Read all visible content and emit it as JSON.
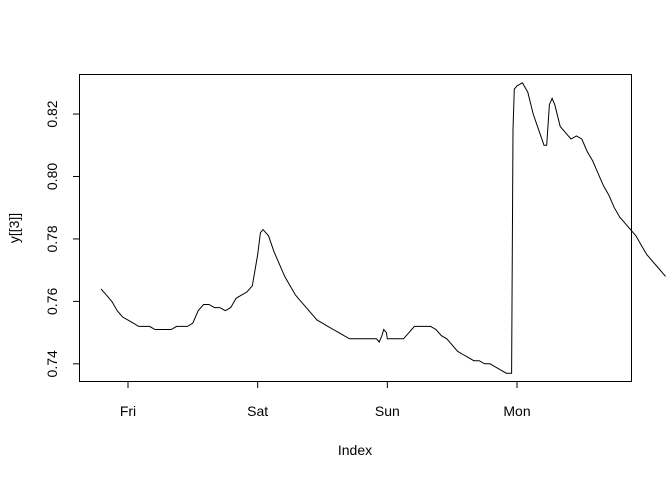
{
  "chart_data": {
    "type": "line",
    "title": "",
    "xlabel": "Index",
    "ylabel": "y[[3]]",
    "x_ticks": [
      "Fri",
      "Sat",
      "Sun",
      "Mon"
    ],
    "y_ticks": [
      "0.74",
      "0.76",
      "0.78",
      "0.80",
      "0.82"
    ],
    "ylim": [
      0.7345,
      0.8325
    ],
    "grid": false,
    "legend": "none",
    "line_color": "#000000",
    "series": [
      {
        "points": [
          [
            "Thu 19:00",
            0.764
          ],
          [
            "Thu 20:00",
            0.762
          ],
          [
            "Thu 21:00",
            0.76
          ],
          [
            "Thu 22:00",
            0.757
          ],
          [
            "Thu 23:00",
            0.755
          ],
          [
            "Fri 00:00",
            0.754
          ],
          [
            "Fri 01:00",
            0.753
          ],
          [
            "Fri 02:00",
            0.752
          ],
          [
            "Fri 03:00",
            0.752
          ],
          [
            "Fri 04:00",
            0.752
          ],
          [
            "Fri 05:00",
            0.751
          ],
          [
            "Fri 06:00",
            0.751
          ],
          [
            "Fri 07:00",
            0.751
          ],
          [
            "Fri 08:00",
            0.751
          ],
          [
            "Fri 09:00",
            0.752
          ],
          [
            "Fri 10:00",
            0.752
          ],
          [
            "Fri 11:00",
            0.752
          ],
          [
            "Fri 12:00",
            0.753
          ],
          [
            "Fri 13:00",
            0.757
          ],
          [
            "Fri 14:00",
            0.759
          ],
          [
            "Fri 15:00",
            0.759
          ],
          [
            "Fri 16:00",
            0.758
          ],
          [
            "Fri 17:00",
            0.758
          ],
          [
            "Fri 18:00",
            0.757
          ],
          [
            "Fri 19:00",
            0.758
          ],
          [
            "Fri 20:00",
            0.761
          ],
          [
            "Fri 21:00",
            0.762
          ],
          [
            "Fri 22:00",
            0.763
          ],
          [
            "Fri 23:00",
            0.765
          ],
          [
            "Sat 00:00",
            0.775
          ],
          [
            "Sat 00:30",
            0.782
          ],
          [
            "Sat 01:00",
            0.783
          ],
          [
            "Sat 02:00",
            0.781
          ],
          [
            "Sat 03:00",
            0.776
          ],
          [
            "Sat 04:00",
            0.772
          ],
          [
            "Sat 05:00",
            0.768
          ],
          [
            "Sat 06:00",
            0.765
          ],
          [
            "Sat 07:00",
            0.762
          ],
          [
            "Sat 08:00",
            0.76
          ],
          [
            "Sat 09:00",
            0.758
          ],
          [
            "Sat 10:00",
            0.756
          ],
          [
            "Sat 11:00",
            0.754
          ],
          [
            "Sat 12:00",
            0.753
          ],
          [
            "Sat 13:00",
            0.752
          ],
          [
            "Sat 14:00",
            0.751
          ],
          [
            "Sat 15:00",
            0.75
          ],
          [
            "Sat 16:00",
            0.749
          ],
          [
            "Sat 17:00",
            0.748
          ],
          [
            "Sat 18:00",
            0.748
          ],
          [
            "Sat 19:00",
            0.748
          ],
          [
            "Sat 20:00",
            0.748
          ],
          [
            "Sat 21:00",
            0.748
          ],
          [
            "Sat 22:00",
            0.748
          ],
          [
            "Sat 22:30",
            0.747
          ],
          [
            "Sat 23:00",
            0.749
          ],
          [
            "Sat 23:20",
            0.751
          ],
          [
            "Sat 23:50",
            0.75
          ],
          [
            "Sun 00:00",
            0.748
          ],
          [
            "Sun 01:00",
            0.748
          ],
          [
            "Sun 02:00",
            0.748
          ],
          [
            "Sun 03:00",
            0.748
          ],
          [
            "Sun 04:00",
            0.75
          ],
          [
            "Sun 05:00",
            0.752
          ],
          [
            "Sun 06:00",
            0.752
          ],
          [
            "Sun 07:00",
            0.752
          ],
          [
            "Sun 08:00",
            0.752
          ],
          [
            "Sun 09:00",
            0.751
          ],
          [
            "Sun 10:00",
            0.749
          ],
          [
            "Sun 11:00",
            0.748
          ],
          [
            "Sun 12:00",
            0.746
          ],
          [
            "Sun 13:00",
            0.744
          ],
          [
            "Sun 14:00",
            0.743
          ],
          [
            "Sun 15:00",
            0.742
          ],
          [
            "Sun 16:00",
            0.741
          ],
          [
            "Sun 17:00",
            0.741
          ],
          [
            "Sun 18:00",
            0.74
          ],
          [
            "Sun 19:00",
            0.74
          ],
          [
            "Sun 20:00",
            0.739
          ],
          [
            "Sun 21:00",
            0.738
          ],
          [
            "Sun 22:00",
            0.737
          ],
          [
            "Sun 23:00",
            0.737
          ],
          [
            "Sun 23:15",
            0.815
          ],
          [
            "Sun 23:30",
            0.828
          ],
          [
            "Mon 00:00",
            0.829
          ],
          [
            "Mon 01:00",
            0.83
          ],
          [
            "Mon 02:00",
            0.827
          ],
          [
            "Mon 03:00",
            0.82
          ],
          [
            "Mon 04:00",
            0.815
          ],
          [
            "Mon 05:00",
            0.81
          ],
          [
            "Mon 05:30",
            0.81
          ],
          [
            "Mon 06:00",
            0.823
          ],
          [
            "Mon 06:30",
            0.825
          ],
          [
            "Mon 07:00",
            0.823
          ],
          [
            "Mon 08:00",
            0.816
          ],
          [
            "Mon 09:00",
            0.814
          ],
          [
            "Mon 10:00",
            0.812
          ],
          [
            "Mon 11:00",
            0.813
          ],
          [
            "Mon 12:00",
            0.812
          ],
          [
            "Mon 13:00",
            0.808
          ],
          [
            "Mon 14:00",
            0.805
          ],
          [
            "Mon 15:00",
            0.801
          ],
          [
            "Mon 16:00",
            0.797
          ],
          [
            "Mon 17:00",
            0.794
          ],
          [
            "Mon 18:00",
            0.79
          ],
          [
            "Mon 19:00",
            0.787
          ],
          [
            "Mon 20:00",
            0.785
          ],
          [
            "Mon 21:00",
            0.783
          ],
          [
            "Mon 22:00",
            0.781
          ],
          [
            "Mon 23:00",
            0.778
          ],
          [
            "Tue 00:00",
            0.775
          ],
          [
            "Tue 01:00",
            0.773
          ],
          [
            "Tue 02:00",
            0.771
          ],
          [
            "Tue 03:00",
            0.769
          ],
          [
            "Tue 03:30",
            0.768
          ]
        ]
      }
    ]
  }
}
